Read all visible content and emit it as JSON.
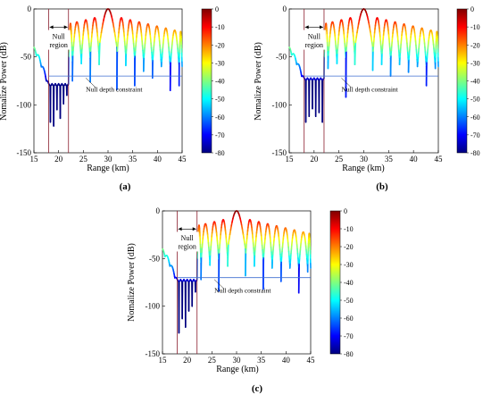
{
  "colormap": {
    "name": "jet",
    "stops": [
      "#00007f",
      "#0000ff",
      "#007fff",
      "#00ffff",
      "#7fff7f",
      "#ffff00",
      "#ff7f00",
      "#ff0000",
      "#7f0000"
    ],
    "range": [
      -80,
      0
    ],
    "tick_labels": [
      "0",
      "-10",
      "-20",
      "-30",
      "-40",
      "-50",
      "-60",
      "-70",
      "-80"
    ]
  },
  "colors": {
    "constraint_line": "#3f6fd0",
    "null_boundary": "#8b1f2f"
  },
  "chart_data": [
    {
      "type": "line",
      "panel_label": "(a)",
      "xlabel": "Range (km)",
      "ylabel": "Nomalize Power (dB)",
      "xlim": [
        15,
        45
      ],
      "ylim": [
        -150,
        0
      ],
      "xticks": [
        15,
        20,
        25,
        30,
        35,
        40,
        45
      ],
      "yticks": [
        0,
        -50,
        -100,
        -150
      ],
      "null_region": {
        "label_line1": "Null",
        "label_line2": "region",
        "x_start": 18,
        "x_end": 22
      },
      "constraint": {
        "label": "Null depth constraint",
        "value": -70
      },
      "main_lobe_x": 30,
      "lobe_width_km": 1.8,
      "near_null_level": -78,
      "near_null_dips": [
        -118,
        -122,
        -105,
        -114,
        -99,
        -90
      ],
      "far_null_dips": [
        -75,
        -57,
        -76,
        -58,
        -84,
        -59,
        -80,
        -65,
        -72,
        -60,
        -85,
        -80,
        -72,
        -58
      ]
    },
    {
      "type": "line",
      "panel_label": "(b)",
      "xlabel": "Range (km)",
      "ylabel": "Nomalize Power (dB)",
      "xlim": [
        15,
        45
      ],
      "ylim": [
        -150,
        0
      ],
      "xticks": [
        15,
        20,
        25,
        30,
        35,
        40,
        45
      ],
      "yticks": [
        0,
        -50,
        -100,
        -150
      ],
      "null_region": {
        "label_line1": "Null",
        "label_line2": "region",
        "x_start": 18,
        "x_end": 22
      },
      "constraint": {
        "label": "Null depth constraint",
        "value": -70
      },
      "main_lobe_x": 30,
      "lobe_width_km": 1.8,
      "near_null_level": -72,
      "near_null_dips": [
        -118,
        -112,
        -104,
        -112,
        -108,
        -118
      ],
      "far_null_dips": [
        -62,
        -57,
        -92,
        -58,
        -64,
        -58,
        -70,
        -58,
        -66,
        -60,
        -80,
        -62,
        -88,
        -82
      ]
    },
    {
      "type": "line",
      "panel_label": "(c)",
      "xlabel": "Range (km)",
      "ylabel": "Nomalize Power (dB)",
      "xlim": [
        15,
        45
      ],
      "ylim": [
        -150,
        0
      ],
      "xticks": [
        15,
        20,
        25,
        30,
        35,
        40,
        45
      ],
      "yticks": [
        0,
        -50,
        -100,
        -150
      ],
      "null_region": {
        "label_line1": "Null",
        "label_line2": "region",
        "x_start": 18,
        "x_end": 22
      },
      "constraint": {
        "label": "Null depth constraint",
        "value": -70
      },
      "main_lobe_x": 30,
      "lobe_width_km": 1.8,
      "near_null_level": -72,
      "near_null_dips": [
        -128,
        -113,
        -122,
        -105,
        -100,
        -85
      ],
      "far_null_dips": [
        -72,
        -57,
        -84,
        -58,
        -68,
        -58,
        -82,
        -60,
        -74,
        -60,
        -86,
        -64,
        -78,
        -80
      ]
    }
  ]
}
